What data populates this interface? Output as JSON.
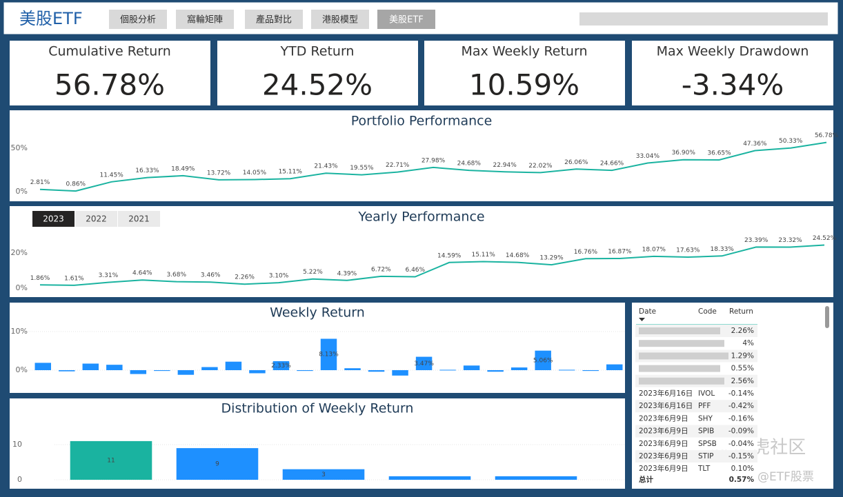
{
  "header": {
    "title": "美股ETF",
    "tabs": [
      "個股分析",
      "窩輪矩陣",
      "產品對比",
      "港股模型",
      "美股ETF"
    ],
    "active_tab": 4
  },
  "kpis": [
    {
      "label": "Cumulative Return",
      "value": "56.78%"
    },
    {
      "label": "YTD Return",
      "value": "24.52%"
    },
    {
      "label": "Max Weekly Return",
      "value": "10.59%"
    },
    {
      "label": "Max Weekly Drawdown",
      "value": "-3.34%"
    }
  ],
  "year_buttons": {
    "options": [
      "2023",
      "2022",
      "2021"
    ],
    "selected": 0
  },
  "chart_data": [
    {
      "type": "line",
      "title": "Portfolio Performance",
      "color": "#1ab3a0",
      "values": [
        2.81,
        0.86,
        11.45,
        16.33,
        18.49,
        13.72,
        14.05,
        15.11,
        21.43,
        19.55,
        22.71,
        27.98,
        24.68,
        22.94,
        22.02,
        26.06,
        24.66,
        33.04,
        36.9,
        36.65,
        47.36,
        50.33,
        56.78
      ],
      "value_labels": [
        "2.81%",
        "0.86%",
        "11.45%",
        "16.33%",
        "18.49%",
        "13.72%",
        "14.05%",
        "15.11%",
        "21.43%",
        "19.55%",
        "22.71%",
        "27.98%",
        "24.68%",
        "22.94%",
        "22.02%",
        "26.06%",
        "24.66%",
        "33.04%",
        "36.90%",
        "36.65%",
        "47.36%",
        "50.33%",
        "56.78%"
      ],
      "ylim": [
        -3,
        62
      ],
      "yticks": [
        {
          "value": 0,
          "label": "0%"
        },
        {
          "value": 50,
          "label": "50%"
        }
      ],
      "grid": false
    },
    {
      "type": "line",
      "title": "Yearly Performance",
      "color": "#1ab3a0",
      "values": [
        1.86,
        1.61,
        3.31,
        4.64,
        3.68,
        3.46,
        2.26,
        3.1,
        5.22,
        4.39,
        6.72,
        6.46,
        14.59,
        15.11,
        14.68,
        13.29,
        16.76,
        16.87,
        18.07,
        17.63,
        18.33,
        23.39,
        23.32,
        24.52
      ],
      "value_labels": [
        "1.86%",
        "1.61%",
        "3.31%",
        "4.64%",
        "3.68%",
        "3.46%",
        "2.26%",
        "3.10%",
        "5.22%",
        "4.39%",
        "6.72%",
        "6.46%",
        "14.59%",
        "15.11%",
        "14.68%",
        "13.29%",
        "16.76%",
        "16.87%",
        "18.07%",
        "17.63%",
        "18.33%",
        "23.39%",
        "23.32%",
        "24.52%"
      ],
      "ylim": [
        -2,
        28
      ],
      "yticks": [
        {
          "value": 0,
          "label": "0%"
        },
        {
          "value": 20,
          "label": "20%"
        }
      ],
      "grid": false
    },
    {
      "type": "bar",
      "title": "Weekly Return",
      "color": "#1e90ff",
      "values": [
        1.9,
        -0.3,
        1.7,
        1.4,
        -1.0,
        -0.2,
        -1.2,
        0.8,
        2.2,
        -0.8,
        2.33,
        -0.2,
        8.13,
        0.5,
        -0.4,
        -1.4,
        3.47,
        0.1,
        1.2,
        -0.4,
        0.7,
        5.06,
        0.1,
        -0.2,
        1.5
      ],
      "value_labels": [
        null,
        null,
        null,
        null,
        null,
        null,
        null,
        null,
        null,
        null,
        "2.33%",
        null,
        "8.13%",
        null,
        null,
        null,
        "3.47%",
        null,
        null,
        null,
        null,
        "5.06%",
        null,
        null,
        null
      ],
      "ylim": [
        -3,
        12
      ],
      "yticks": [
        {
          "value": 0,
          "label": "0%"
        },
        {
          "value": 10,
          "label": "10%"
        }
      ],
      "grid": true
    },
    {
      "type": "bar",
      "title": "Distribution of Weekly Return",
      "colors": [
        "#1ab3a0",
        "#1e90ff",
        "#1e90ff",
        "#1e90ff",
        "#1e90ff"
      ],
      "values": [
        11,
        9,
        3,
        1,
        1
      ],
      "value_labels": [
        "11",
        "9",
        "3",
        null,
        null
      ],
      "ylim": [
        0,
        12
      ],
      "yticks": [
        0,
        10
      ],
      "grid": true
    }
  ],
  "table": {
    "columns": [
      "Date",
      "Code",
      "Return"
    ],
    "rows": [
      {
        "return": "2.26%"
      },
      {
        "return": "4%"
      },
      {
        "return": "1.29%"
      },
      {
        "return": "0.55%"
      },
      {
        "return": "2.56%"
      },
      {
        "date": "2023年6月16日",
        "code": "IVOL",
        "return": "-0.14%"
      },
      {
        "date": "2023年6月16日",
        "code": "PFF",
        "return": "-0.42%"
      },
      {
        "date": "2023年6月9日",
        "code": "SHY",
        "return": "-0.16%"
      },
      {
        "date": "2023年6月9日",
        "code": "SPIB",
        "return": "-0.09%"
      },
      {
        "date": "2023年6月9日",
        "code": "SPSB",
        "return": "-0.04%"
      },
      {
        "date": "2023年6月9日",
        "code": "STIP",
        "return": "-0.15%"
      },
      {
        "date": "2023年6月9日",
        "code": "TLT",
        "return": "0.10%"
      }
    ],
    "total_label": "总计",
    "total": "0.57%"
  },
  "watermarks": [
    "@ 老虎社区",
    "@ETF股票"
  ]
}
